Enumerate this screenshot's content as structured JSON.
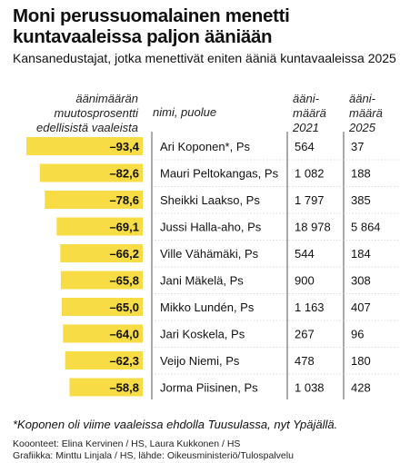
{
  "title": "Moni perussuomalainen menetti kuntavaaleissa paljon ääniään",
  "subtitle": "Kansanedustajat, jotka menettivät eniten ääniä kuntavaaleissa 2025",
  "headers": {
    "change": "äänimäärän muutosprosentti edellisistä vaaleista",
    "name": "nimi, puolue",
    "votes_2021": "ääni-määrä 2021",
    "votes_2025": "ääni-määrä 2025"
  },
  "colors": {
    "bar": "#f7dc45",
    "rule": "#555555"
  },
  "chart_data": {
    "type": "bar",
    "orientation": "horizontal",
    "categories": [
      "Ari Koponen*, Ps",
      "Mauri Peltokangas, Ps",
      "Sheikki Laakso, Ps",
      "Jussi Halla-aho, Ps",
      "Ville Vähämäki, Ps",
      "Jani Mäkelä, Ps",
      "Mikko Lundén, Ps",
      "Jari Koskela, Ps",
      "Veijo Niemi, Ps",
      "Jorma Piisinen, Ps"
    ],
    "values": [
      -93.4,
      -82.6,
      -78.6,
      -69.1,
      -66.2,
      -65.8,
      -65.0,
      -64.0,
      -62.3,
      -58.8
    ],
    "value_labels": [
      "–93,4",
      "–82,6",
      "–78,6",
      "–69,1",
      "–66,2",
      "–65,8",
      "–65,0",
      "–64,0",
      "–62,3",
      "–58,8"
    ],
    "votes_2021": [
      "564",
      "1 082",
      "1 797",
      "18 978",
      "544",
      "900",
      "1 163",
      "267",
      "478",
      "1 038"
    ],
    "votes_2025": [
      "37",
      "188",
      "385",
      "5 864",
      "184",
      "308",
      "407",
      "96",
      "180",
      "428"
    ]
  },
  "footnote": "*Koponen oli viime vaaleissa ehdolla Tuusulassa, nyt Ypäjällä.",
  "credits": [
    "Kooonteet: Elina Kervinen / HS, Laura Kukkonen / HS",
    "Grafiikka: Minttu Linjala / HS, lähde: Oikeusministeriö/Tulospalvelu"
  ]
}
